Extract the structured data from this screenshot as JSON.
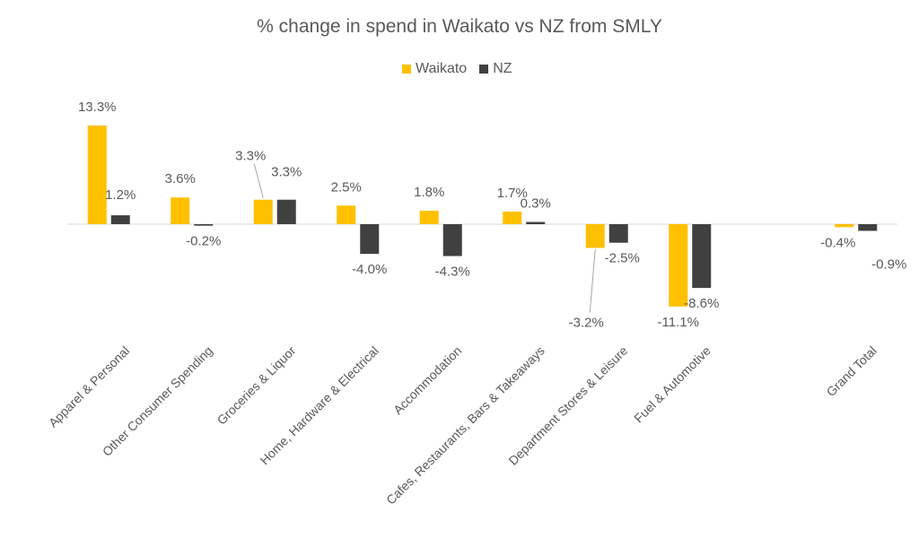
{
  "chart_data": {
    "type": "bar",
    "title": "% change in spend in Waikato vs NZ from SMLY",
    "xlabel": "",
    "ylabel": "",
    "categories": [
      "Apparel & Personal",
      "Other Consumer Spending",
      "Groceries & Liquor",
      "Home, Hardware & Electrical",
      "Accommodation",
      "Cafes, Restaurants, Bars & Takeaways",
      "Department Stores & Leisure",
      "Fuel & Automotive",
      "",
      "Grand Total"
    ],
    "series": [
      {
        "name": "Waikato",
        "color": "#FFC000",
        "values": [
          13.3,
          3.6,
          3.3,
          2.5,
          1.8,
          1.7,
          -3.2,
          -11.1,
          null,
          -0.4
        ],
        "labels": [
          "13.3%",
          "3.6%",
          "3.3%",
          "2.5%",
          "1.8%",
          "1.7%",
          "-3.2%",
          "-11.1%",
          "",
          "-0.4%"
        ]
      },
      {
        "name": "NZ",
        "color": "#404040",
        "values": [
          1.2,
          -0.2,
          3.3,
          -4.0,
          -4.3,
          0.3,
          -2.5,
          -8.6,
          null,
          -0.9
        ],
        "labels": [
          "1.2%",
          "-0.2%",
          "3.3%",
          "-4.0%",
          "-4.3%",
          "0.3%",
          "-2.5%",
          "-8.6%",
          "",
          "-0.9%"
        ]
      }
    ],
    "ylim": [
      -13,
      15
    ],
    "grid": false,
    "legend_position": "top-center"
  }
}
